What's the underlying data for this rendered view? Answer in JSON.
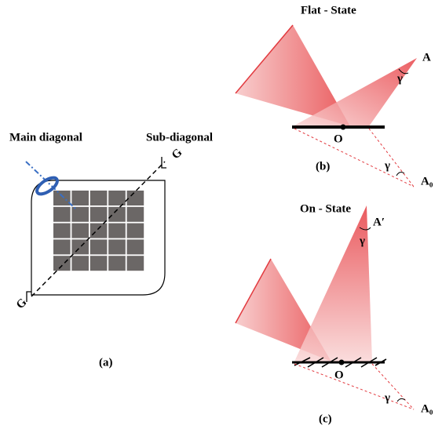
{
  "panel_a": {
    "left_label": "Main diagonal",
    "right_label": "Sub-diagonal",
    "g_top": "G",
    "g_bottom": "G",
    "caption": "(a)"
  },
  "panel_b": {
    "title": "Flat - State",
    "point_a": "A",
    "angle_top": "γ",
    "origin": "O",
    "angle_bottom": "γ",
    "image_point": "A₀",
    "caption": "(b)"
  },
  "panel_c": {
    "title": "On - State",
    "point_a": "A′",
    "angle_top": "γ",
    "origin": "O",
    "angle_bottom": "γ",
    "image_point": "A₀",
    "caption": "(c)"
  }
}
